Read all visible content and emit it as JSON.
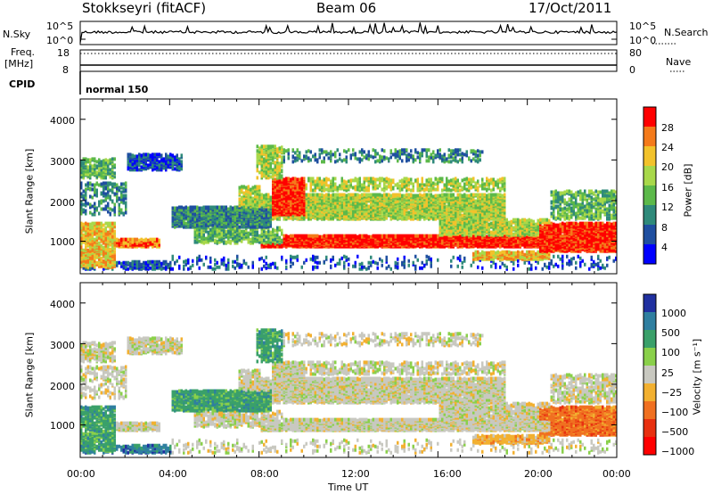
{
  "header": {
    "station": "Stokkseyri (fitACF)",
    "beam": "Beam 06",
    "date": "17/Oct/2011"
  },
  "top_panels": {
    "nsky_label": "N.Sky",
    "nsky_ticks": [
      "10^5",
      "10^0"
    ],
    "nsearch_label": "N.Search",
    "nsearch_ticks": [
      "10^5",
      "10^0"
    ],
    "freq_label": "Freq.",
    "freq_unit": "[MHz]",
    "freq_ticks": [
      "18",
      "8"
    ],
    "nave_label": "Nave",
    "nave_ticks": [
      "80",
      "0"
    ],
    "cpid_label": "CPID",
    "cpid_value": "normal 150"
  },
  "chart_data": [
    {
      "type": "heatmap",
      "panel": "power",
      "ylabel": "Slant Range [km]",
      "yticks": [
        "4000",
        "3000",
        "2000",
        "1000"
      ],
      "ylim": [
        200,
        4500
      ],
      "xlim": [
        0,
        24
      ],
      "colorbar_label": "Power [dB]",
      "colorbar_ticks": [
        "28",
        "24",
        "20",
        "16",
        "12",
        "8",
        "4"
      ],
      "colors": [
        "#0000ff",
        "#1f4fa0",
        "#2f8a7a",
        "#5cb94a",
        "#a8d84a",
        "#f2c22b",
        "#f47a1a",
        "#ff0000"
      ]
    },
    {
      "type": "heatmap",
      "panel": "velocity",
      "ylabel": "Slant Range [km]",
      "yticks": [
        "4000",
        "3000",
        "2000",
        "1000"
      ],
      "ylim": [
        200,
        4500
      ],
      "xlim": [
        0,
        24
      ],
      "colorbar_label": "Velocity [m s⁻¹]",
      "colorbar_ticks": [
        "1000",
        "500",
        "100",
        "25",
        "−25",
        "−100",
        "−500",
        "−1000"
      ],
      "colors": [
        "#2030a0",
        "#2f7fa0",
        "#3aa06a",
        "#8ad04a",
        "#c8c8c0",
        "#f2b030",
        "#f07020",
        "#e83010",
        "#ff0000"
      ]
    }
  ],
  "xaxis": {
    "ticks": [
      "00:00",
      "04:00",
      "08:00",
      "12:00",
      "16:00",
      "20:00",
      "00:00"
    ],
    "label": "Time UT"
  }
}
